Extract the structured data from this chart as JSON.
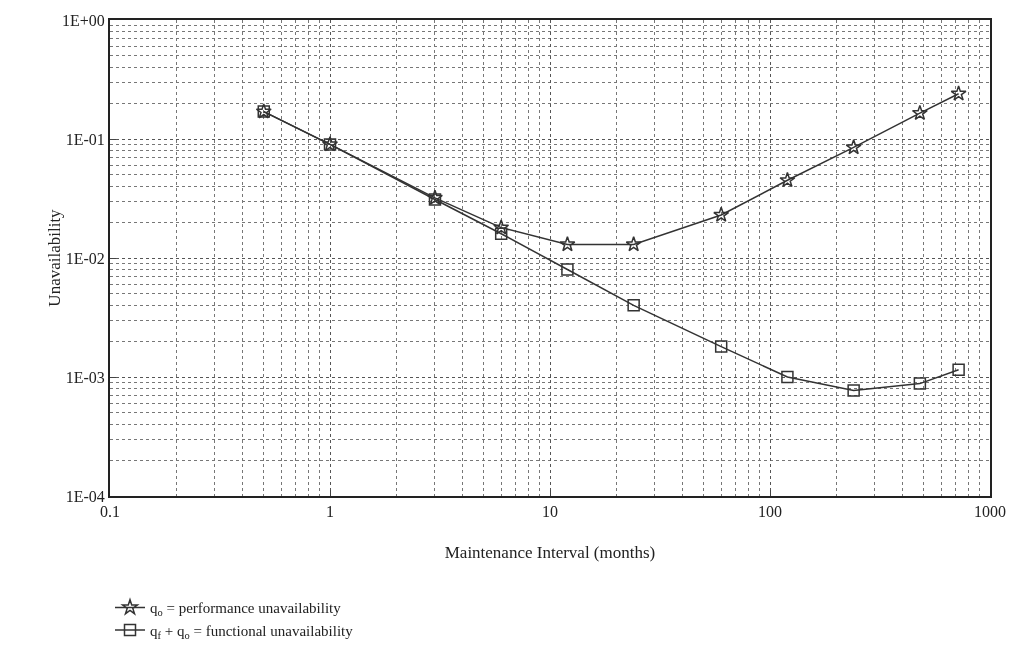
{
  "chart_data": {
    "type": "line",
    "xlabel": "Maintenance Interval (months)",
    "ylabel": "Unavailability",
    "log": "xy",
    "grid": true,
    "legend": "bottom left",
    "line_style": "solid",
    "xlim": [
      0.1,
      1000
    ],
    "xticks": [
      0.1,
      1,
      10,
      100,
      1000
    ],
    "ylim": [
      0.0001,
      1
    ],
    "yticks": [
      {
        "value": 0.0001,
        "label": "1E-04"
      },
      {
        "value": 0.001,
        "label": "1E-03"
      },
      {
        "value": 0.01,
        "label": "1E-02"
      },
      {
        "value": 0.1,
        "label": "1E-01"
      },
      {
        "value": 1,
        "label": "1E+00"
      }
    ],
    "x": [
      0.5,
      1,
      3,
      6,
      12,
      24,
      60,
      120,
      240,
      480,
      720
    ],
    "series": [
      {
        "name": "q$_{o}$ = performance unavailability",
        "color": "#333333",
        "marker": "star",
        "values": [
          0.17,
          0.09,
          0.032,
          0.018,
          0.013,
          0.013,
          0.023,
          0.045,
          0.085,
          0.165,
          0.24
        ]
      },
      {
        "name": "q$_{f}$ + q$_{o}$ = functional unavailability",
        "color": "#333333",
        "marker": "square",
        "values": [
          0.17,
          0.09,
          0.031,
          0.016,
          0.008,
          0.004,
          0.0018,
          0.001,
          0.00077,
          0.00088,
          0.00115
        ]
      }
    ]
  }
}
